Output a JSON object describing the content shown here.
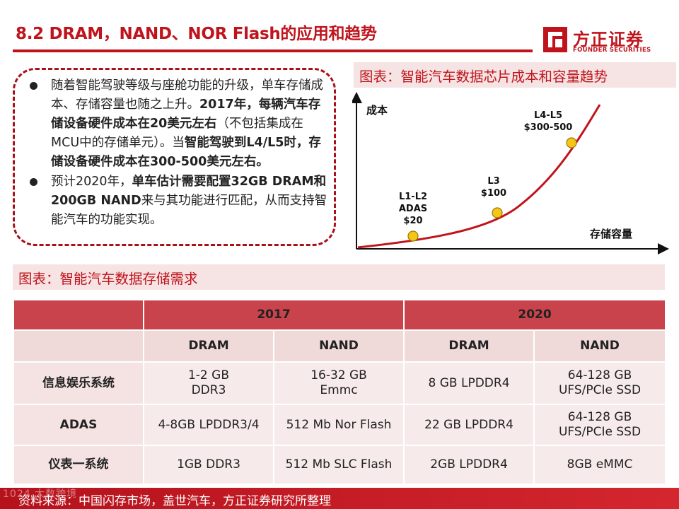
{
  "header": {
    "title": "8.2 DRAM，NAND、NOR Flash的应用和趋势"
  },
  "logo": {
    "name_cn": "方正证券",
    "name_en": "FOUNDER SECURITIES",
    "color": "#c0141c"
  },
  "bullets": [
    {
      "parts": [
        {
          "text": "随着智能驾驶等级与座舱功能的升级，单车存储成本、存储容量也随之上升。",
          "bold": false
        },
        {
          "text": "2017年，每辆汽车存储设备硬件成本在20美元左右",
          "bold": true
        },
        {
          "text": "（不包括集成在MCU中的存储单元）。当",
          "bold": false
        },
        {
          "text": "智能驾驶到L4/L5时，存储设备硬件成本在300-500美元左右。",
          "bold": true
        }
      ]
    },
    {
      "parts": [
        {
          "text": "预计2020年，",
          "bold": false
        },
        {
          "text": "单车估计需要配置32GB DRAM和200GB NAND",
          "bold": true
        },
        {
          "text": "来与其功能进行匹配，从而支持智能汽车的功能实现。",
          "bold": false
        }
      ]
    }
  ],
  "cost_chart": {
    "heading": "图表：智能汽车数据芯片成本和容量趋势",
    "y_label": "成本",
    "x_label": "存储容量",
    "curve_color": "#c0141c",
    "point_color": "#f5c518",
    "points": [
      {
        "line1": "L1-L2",
        "line2": "ADAS",
        "line3": "$20"
      },
      {
        "line1": "L3",
        "line2": "$100"
      },
      {
        "line1": "L4-L5",
        "line2": "$300-500"
      }
    ]
  },
  "storage_table": {
    "heading": "图表：智能汽车数据存储需求",
    "years": [
      "2017",
      "2020"
    ],
    "types": [
      "DRAM",
      "NAND",
      "DRAM",
      "NAND"
    ],
    "rows": [
      {
        "name": "信息娱乐系统",
        "cells": [
          "1-2 GB\nDDR3",
          "16-32 GB\nEmmc",
          "8 GB LPDDR4",
          "64-128 GB\nUFS/PCIe SSD"
        ]
      },
      {
        "name": "ADAS",
        "cells": [
          "4-8GB LPDDR3/4",
          "512 Mb Nor Flash",
          "22 GB LPDDR4",
          "64-128 GB\nUFS/PCIe SSD"
        ]
      },
      {
        "name": "仪表一系统",
        "cells": [
          "1GB DDR3",
          "512 Mb SLC Flash",
          "2GB LPDDR4",
          "8GB eMMC"
        ]
      }
    ],
    "header_color": "#c8434b"
  },
  "footer": {
    "source": "资料来源：中国闪存市场，盖世汽车，方正证券研究所整理",
    "watermark": "1024 大数跨境"
  }
}
